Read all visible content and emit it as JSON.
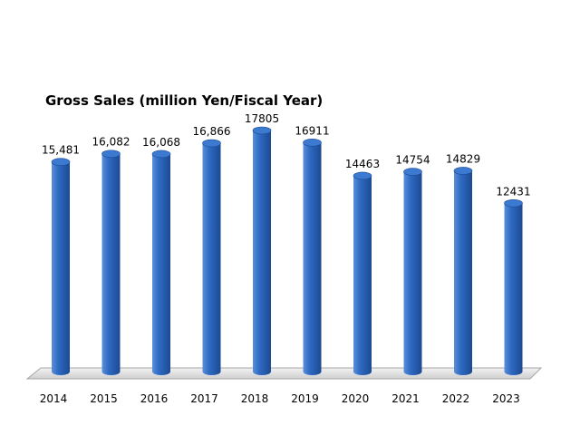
{
  "chart_data": {
    "type": "bar",
    "title": "Gross Sales (million Yen/Fiscal Year)",
    "xlabel": "",
    "ylabel": "",
    "categories": [
      "2014",
      "2015",
      "2016",
      "2017",
      "2018",
      "2019",
      "2020",
      "2021",
      "2022",
      "2023"
    ],
    "values": [
      15481,
      16082,
      16068,
      16866,
      17805,
      16911,
      14463,
      14754,
      14829,
      12431
    ],
    "data_labels": [
      "15,481",
      "16,082",
      "16,068",
      "16,866",
      "17805",
      "16911",
      "14463",
      "14754",
      "14829",
      "12431"
    ],
    "ylim": [
      0,
      17805
    ],
    "grid": false,
    "legend": "none",
    "colors": {
      "bar_light": "#5b8fd9",
      "bar_mid": "#2f6bc4",
      "bar_dark": "#1c4a92",
      "bar_top": "#3c79d0",
      "floor": "#d9d9d9"
    }
  }
}
